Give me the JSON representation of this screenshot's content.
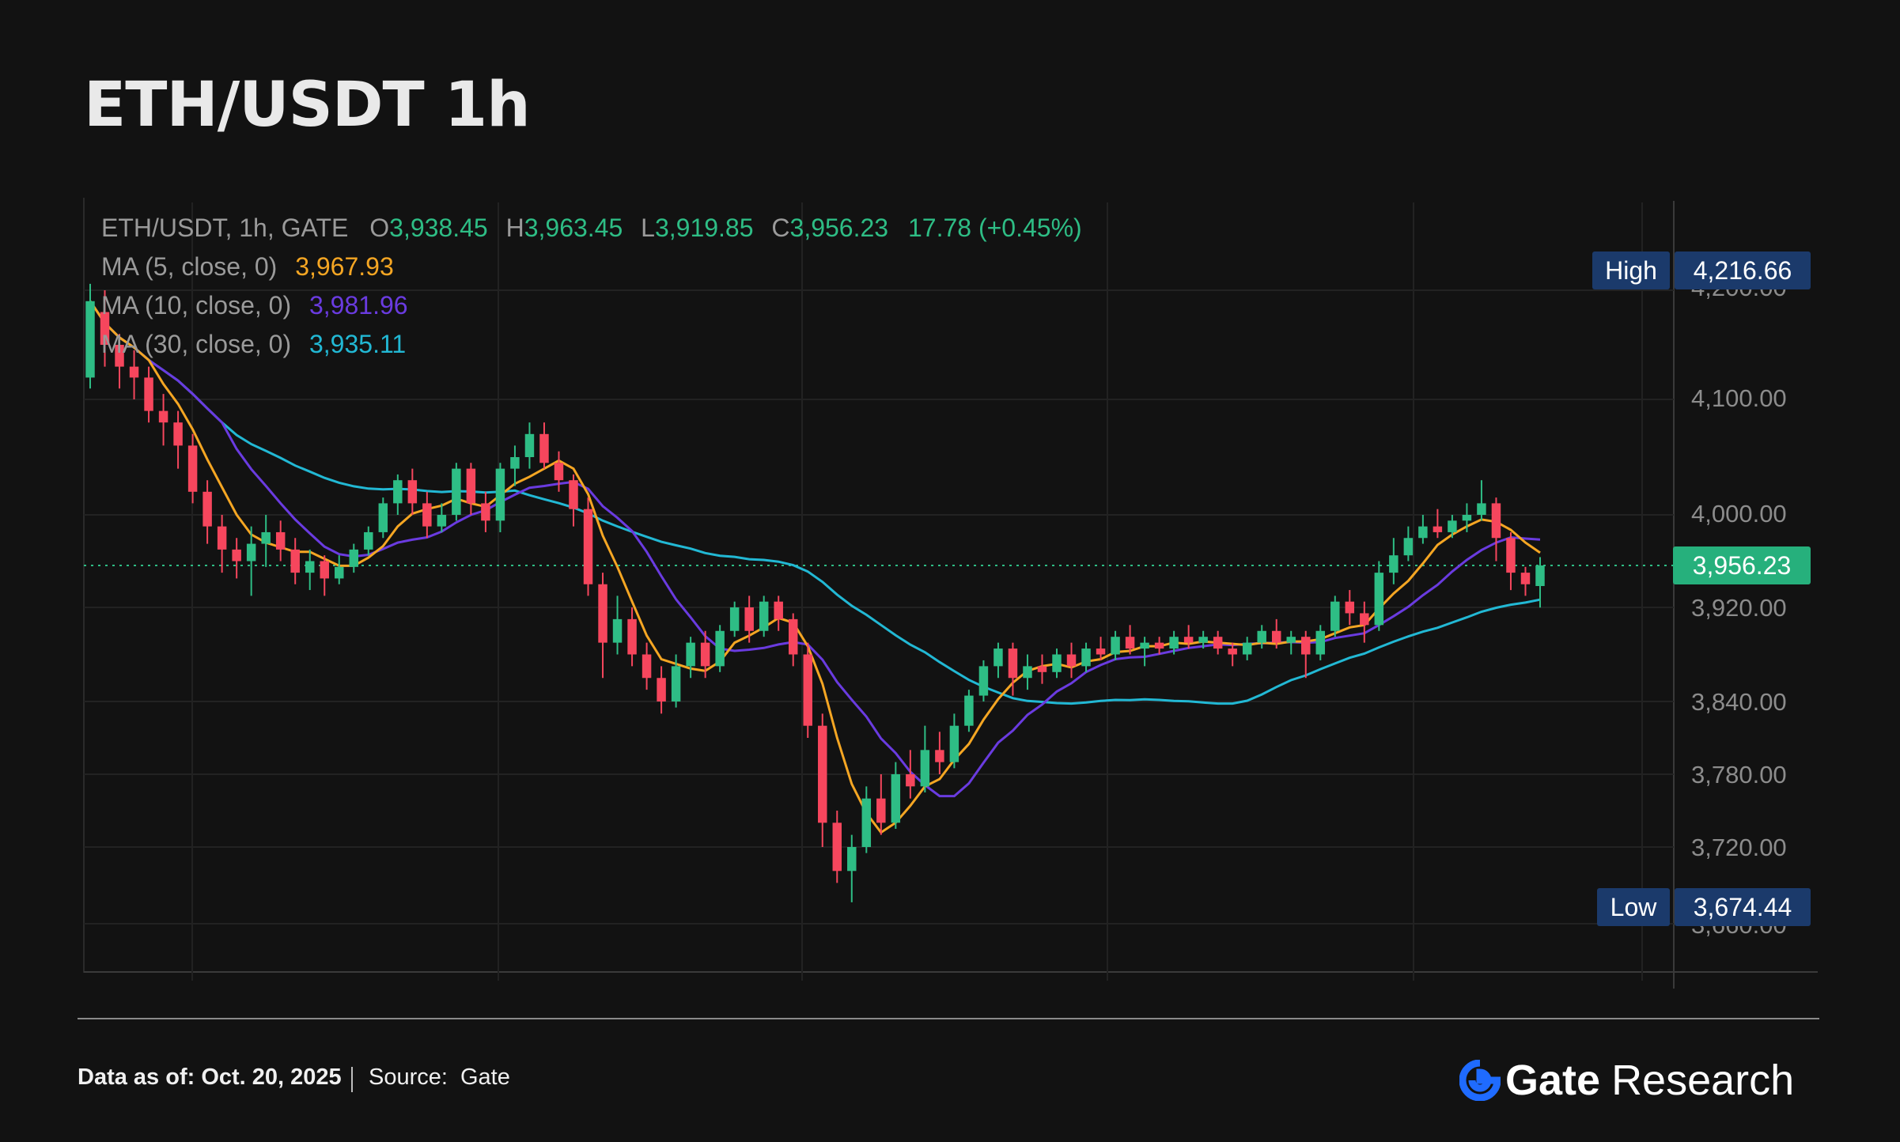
{
  "title": "ETH/USDT 1h",
  "legend": {
    "symbol": "ETH/USDT, 1h, GATE",
    "o_key": "O",
    "o": "3,938.45",
    "h_key": "H",
    "h": "3,963.45",
    "l_key": "L",
    "l": "3,919.85",
    "c_key": "C",
    "c": "3,956.23",
    "change": "17.78 (+0.45%)",
    "ma5_label": "MA (5, close, 0)",
    "ma5_value": "3,967.93",
    "ma10_label": "MA (10, close, 0)",
    "ma10_value": "3,981.96",
    "ma30_label": "MA (30, close, 0)",
    "ma30_value": "3,935.11"
  },
  "y_axis_labels": [
    "4,200.00",
    "4,100.00",
    "4,000.00",
    "3,920.00",
    "3,840.00",
    "3,780.00",
    "3,720.00",
    "3,660.00"
  ],
  "tags": {
    "high_label": "High",
    "high_value": "4,216.66",
    "last_value": "3,956.23",
    "low_label": "Low",
    "low_value": "3,674.44"
  },
  "footer": {
    "date": "Data as of: Oct. 20, 2025",
    "source_label": "Source:",
    "source_value": "Gate",
    "brand_name": "Gate",
    "brand_sub": "Research"
  },
  "colors": {
    "up": "#2ebd85",
    "down": "#f6465d",
    "ma5": "#f5a623",
    "ma10": "#6a3be0",
    "ma30": "#22b8d4",
    "grid": "#222222",
    "tag_dark": "#1b3a6b",
    "tag_green": "#26b07c"
  },
  "chart_data": {
    "type": "candlestick",
    "interval": "1h",
    "y_ticks": [
      4200,
      4100,
      4000,
      3920,
      3840,
      3780,
      3720,
      3660
    ],
    "high": 4216.66,
    "low": 3674.44,
    "last": 3956.23,
    "candles": [
      [
        4120,
        4190,
        4110,
        4205
      ],
      [
        4180,
        4150,
        4130,
        4200
      ],
      [
        4150,
        4130,
        4110,
        4160
      ],
      [
        4130,
        4120,
        4100,
        4145
      ],
      [
        4120,
        4090,
        4080,
        4130
      ],
      [
        4090,
        4080,
        4060,
        4105
      ],
      [
        4080,
        4060,
        4040,
        4090
      ],
      [
        4060,
        4020,
        4010,
        4070
      ],
      [
        4020,
        3990,
        3975,
        4030
      ],
      [
        3990,
        3970,
        3950,
        4000
      ],
      [
        3970,
        3960,
        3945,
        3980
      ],
      [
        3960,
        3975,
        3930,
        3990
      ],
      [
        3975,
        3985,
        3955,
        4000
      ],
      [
        3985,
        3970,
        3960,
        3995
      ],
      [
        3970,
        3950,
        3940,
        3980
      ],
      [
        3950,
        3960,
        3935,
        3970
      ],
      [
        3960,
        3945,
        3930,
        3965
      ],
      [
        3945,
        3955,
        3940,
        3965
      ],
      [
        3955,
        3970,
        3950,
        3975
      ],
      [
        3970,
        3985,
        3965,
        3990
      ],
      [
        3985,
        4010,
        3980,
        4015
      ],
      [
        4010,
        4030,
        4000,
        4035
      ],
      [
        4030,
        4010,
        4000,
        4040
      ],
      [
        4010,
        3990,
        3980,
        4020
      ],
      [
        3990,
        4000,
        3985,
        4010
      ],
      [
        4000,
        4040,
        3995,
        4045
      ],
      [
        4040,
        4010,
        4000,
        4045
      ],
      [
        4010,
        3995,
        3985,
        4020
      ],
      [
        3995,
        4040,
        3985,
        4045
      ],
      [
        4040,
        4050,
        4025,
        4060
      ],
      [
        4050,
        4070,
        4040,
        4080
      ],
      [
        4070,
        4045,
        4040,
        4080
      ],
      [
        4045,
        4030,
        4020,
        4055
      ],
      [
        4030,
        4005,
        3990,
        4035
      ],
      [
        4005,
        3940,
        3930,
        4015
      ],
      [
        3940,
        3890,
        3860,
        3950
      ],
      [
        3890,
        3910,
        3880,
        3930
      ],
      [
        3910,
        3880,
        3870,
        3920
      ],
      [
        3880,
        3860,
        3850,
        3890
      ],
      [
        3860,
        3840,
        3830,
        3870
      ],
      [
        3840,
        3870,
        3835,
        3880
      ],
      [
        3870,
        3890,
        3860,
        3895
      ],
      [
        3890,
        3870,
        3860,
        3900
      ],
      [
        3870,
        3900,
        3865,
        3905
      ],
      [
        3900,
        3920,
        3895,
        3925
      ],
      [
        3920,
        3900,
        3890,
        3930
      ],
      [
        3900,
        3925,
        3895,
        3930
      ],
      [
        3925,
        3910,
        3900,
        3930
      ],
      [
        3910,
        3880,
        3870,
        3915
      ],
      [
        3880,
        3820,
        3810,
        3890
      ],
      [
        3820,
        3740,
        3720,
        3830
      ],
      [
        3740,
        3700,
        3690,
        3750
      ],
      [
        3700,
        3720,
        3674,
        3730
      ],
      [
        3720,
        3760,
        3715,
        3770
      ],
      [
        3760,
        3740,
        3730,
        3780
      ],
      [
        3740,
        3780,
        3735,
        3790
      ],
      [
        3780,
        3770,
        3760,
        3800
      ],
      [
        3770,
        3800,
        3765,
        3820
      ],
      [
        3800,
        3790,
        3780,
        3815
      ],
      [
        3790,
        3820,
        3785,
        3830
      ],
      [
        3820,
        3845,
        3815,
        3850
      ],
      [
        3845,
        3870,
        3840,
        3875
      ],
      [
        3870,
        3885,
        3860,
        3890
      ],
      [
        3885,
        3860,
        3845,
        3890
      ],
      [
        3860,
        3870,
        3850,
        3880
      ],
      [
        3870,
        3865,
        3855,
        3880
      ],
      [
        3865,
        3880,
        3860,
        3885
      ],
      [
        3880,
        3870,
        3860,
        3890
      ],
      [
        3870,
        3885,
        3865,
        3890
      ],
      [
        3885,
        3880,
        3875,
        3895
      ],
      [
        3880,
        3895,
        3875,
        3900
      ],
      [
        3895,
        3885,
        3880,
        3905
      ],
      [
        3885,
        3890,
        3870,
        3895
      ],
      [
        3890,
        3885,
        3880,
        3895
      ],
      [
        3885,
        3895,
        3880,
        3900
      ],
      [
        3895,
        3890,
        3885,
        3905
      ],
      [
        3890,
        3895,
        3885,
        3900
      ],
      [
        3895,
        3885,
        3880,
        3900
      ],
      [
        3885,
        3880,
        3870,
        3890
      ],
      [
        3880,
        3890,
        3875,
        3895
      ],
      [
        3890,
        3900,
        3885,
        3905
      ],
      [
        3900,
        3890,
        3885,
        3910
      ],
      [
        3890,
        3895,
        3880,
        3900
      ],
      [
        3895,
        3880,
        3860,
        3900
      ],
      [
        3880,
        3900,
        3875,
        3905
      ],
      [
        3900,
        3925,
        3895,
        3930
      ],
      [
        3925,
        3915,
        3905,
        3935
      ],
      [
        3915,
        3905,
        3890,
        3925
      ],
      [
        3905,
        3950,
        3900,
        3960
      ],
      [
        3950,
        3965,
        3940,
        3980
      ],
      [
        3965,
        3980,
        3960,
        3990
      ],
      [
        3980,
        3990,
        3975,
        4000
      ],
      [
        3990,
        3985,
        3980,
        4005
      ],
      [
        3985,
        3995,
        3980,
        4000
      ],
      [
        3995,
        4000,
        3985,
        4010
      ],
      [
        4000,
        4010,
        3995,
        4030
      ],
      [
        4010,
        3980,
        3960,
        4015
      ],
      [
        3980,
        3950,
        3935,
        3985
      ],
      [
        3950,
        3940,
        3930,
        3955
      ],
      [
        3938.45,
        3956.23,
        3919.85,
        3963.45
      ]
    ],
    "ma5": null,
    "ma10": null,
    "ma30": null
  }
}
